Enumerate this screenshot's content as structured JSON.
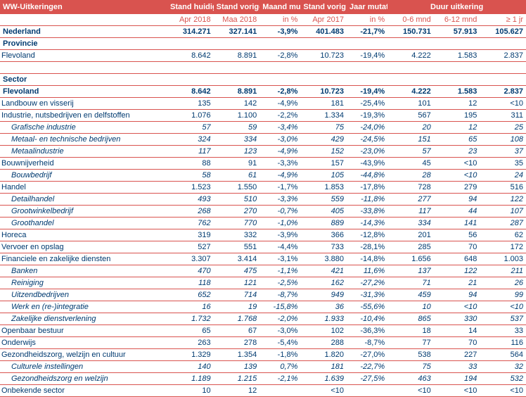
{
  "title": "WW-Uitkeringen",
  "headers": {
    "group": [
      "Stand huidige maand",
      "Stand vorige maand",
      "Maand mutatie",
      "Stand vorig jaar",
      "Jaar mutatie",
      "Duur uitkering"
    ],
    "sub": [
      "Apr 2018",
      "Maa 2018",
      "in %",
      "Apr 2017",
      "in %",
      "0-6 mnd",
      "6-12 mnd",
      "≥ 1 jr"
    ]
  },
  "rows": [
    {
      "style": "bold",
      "label": "Nederland",
      "v": [
        "314.271",
        "327.141",
        "-3,9%",
        "401.483",
        "-21,7%",
        "150.731",
        "57.913",
        "105.627"
      ]
    },
    {
      "style": "section",
      "label": "Provincie",
      "v": [
        "",
        "",
        "",
        "",
        "",
        "",
        "",
        ""
      ]
    },
    {
      "style": "cat",
      "label": "Flevoland",
      "v": [
        "8.642",
        "8.891",
        "-2,8%",
        "10.723",
        "-19,4%",
        "4.222",
        "1.583",
        "2.837"
      ]
    },
    {
      "style": "blank",
      "label": "",
      "v": [
        "",
        "",
        "",
        "",
        "",
        "",
        "",
        ""
      ]
    },
    {
      "style": "section",
      "label": "Sector",
      "v": [
        "",
        "",
        "",
        "",
        "",
        "",
        "",
        ""
      ]
    },
    {
      "style": "bold",
      "label": "Flevoland",
      "v": [
        "8.642",
        "8.891",
        "-2,8%",
        "10.723",
        "-19,4%",
        "4.222",
        "1.583",
        "2.837"
      ]
    },
    {
      "style": "cat",
      "label": "Landbouw en visserij",
      "v": [
        "135",
        "142",
        "-4,9%",
        "181",
        "-25,4%",
        "101",
        "12",
        "<10"
      ]
    },
    {
      "style": "cat",
      "label": "Industrie, nutsbedrijven en delfstoffen",
      "v": [
        "1.076",
        "1.100",
        "-2,2%",
        "1.334",
        "-19,3%",
        "567",
        "195",
        "311"
      ]
    },
    {
      "style": "italic",
      "label": "Grafische industrie",
      "v": [
        "57",
        "59",
        "-3,4%",
        "75",
        "-24,0%",
        "20",
        "12",
        "25"
      ]
    },
    {
      "style": "italic",
      "label": "Metaal- en technische bedrijven",
      "v": [
        "324",
        "334",
        "-3,0%",
        "429",
        "-24,5%",
        "151",
        "65",
        "108"
      ]
    },
    {
      "style": "italic",
      "label": "Metaalindustrie",
      "v": [
        "117",
        "123",
        "-4,9%",
        "152",
        "-23,0%",
        "57",
        "23",
        "37"
      ]
    },
    {
      "style": "cat",
      "label": "Bouwnijverheid",
      "v": [
        "88",
        "91",
        "-3,3%",
        "157",
        "-43,9%",
        "45",
        "<10",
        "35"
      ]
    },
    {
      "style": "italic",
      "label": "Bouwbedrijf",
      "v": [
        "58",
        "61",
        "-4,9%",
        "105",
        "-44,8%",
        "28",
        "<10",
        "24"
      ]
    },
    {
      "style": "cat",
      "label": "Handel",
      "v": [
        "1.523",
        "1.550",
        "-1,7%",
        "1.853",
        "-17,8%",
        "728",
        "279",
        "516"
      ]
    },
    {
      "style": "italic",
      "label": "Detailhandel",
      "v": [
        "493",
        "510",
        "-3,3%",
        "559",
        "-11,8%",
        "277",
        "94",
        "122"
      ]
    },
    {
      "style": "italic",
      "label": "Grootwinkelbedrijf",
      "v": [
        "268",
        "270",
        "-0,7%",
        "405",
        "-33,8%",
        "117",
        "44",
        "107"
      ]
    },
    {
      "style": "italic",
      "label": "Groothandel",
      "v": [
        "762",
        "770",
        "-1,0%",
        "889",
        "-14,3%",
        "334",
        "141",
        "287"
      ]
    },
    {
      "style": "cat",
      "label": "Horeca",
      "v": [
        "319",
        "332",
        "-3,9%",
        "366",
        "-12,8%",
        "201",
        "56",
        "62"
      ]
    },
    {
      "style": "cat",
      "label": "Vervoer en opslag",
      "v": [
        "527",
        "551",
        "-4,4%",
        "733",
        "-28,1%",
        "285",
        "70",
        "172"
      ]
    },
    {
      "style": "cat",
      "label": "Financiele en zakelijke diensten",
      "v": [
        "3.307",
        "3.414",
        "-3,1%",
        "3.880",
        "-14,8%",
        "1.656",
        "648",
        "1.003"
      ]
    },
    {
      "style": "italic",
      "label": "Banken",
      "v": [
        "470",
        "475",
        "-1,1%",
        "421",
        "11,6%",
        "137",
        "122",
        "211"
      ]
    },
    {
      "style": "italic",
      "label": "Reiniging",
      "v": [
        "118",
        "121",
        "-2,5%",
        "162",
        "-27,2%",
        "71",
        "21",
        "26"
      ]
    },
    {
      "style": "italic",
      "label": "Uitzendbedrijven",
      "v": [
        "652",
        "714",
        "-8,7%",
        "949",
        "-31,3%",
        "459",
        "94",
        "99"
      ]
    },
    {
      "style": "italic",
      "label": "Werk en (re-)integratie",
      "v": [
        "16",
        "19",
        "-15,8%",
        "36",
        "-55,6%",
        "10",
        "<10",
        "<10"
      ]
    },
    {
      "style": "italic",
      "label": "Zakelijke dienstverlening",
      "v": [
        "1.732",
        "1.768",
        "-2,0%",
        "1.933",
        "-10,4%",
        "865",
        "330",
        "537"
      ]
    },
    {
      "style": "cat",
      "label": "Openbaar bestuur",
      "v": [
        "65",
        "67",
        "-3,0%",
        "102",
        "-36,3%",
        "18",
        "14",
        "33"
      ]
    },
    {
      "style": "cat",
      "label": "Onderwijs",
      "v": [
        "263",
        "278",
        "-5,4%",
        "288",
        "-8,7%",
        "77",
        "70",
        "116"
      ]
    },
    {
      "style": "cat",
      "label": "Gezondheidszorg, welzijn en cultuur",
      "v": [
        "1.329",
        "1.354",
        "-1,8%",
        "1.820",
        "-27,0%",
        "538",
        "227",
        "564"
      ]
    },
    {
      "style": "italic",
      "label": "Culturele instellingen",
      "v": [
        "140",
        "139",
        "0,7%",
        "181",
        "-22,7%",
        "75",
        "33",
        "32"
      ]
    },
    {
      "style": "italic",
      "label": "Gezondheidszorg en welzijn",
      "v": [
        "1.189",
        "1.215",
        "-2,1%",
        "1.639",
        "-27,5%",
        "463",
        "194",
        "532"
      ]
    },
    {
      "style": "cat",
      "label": "Onbekende sector",
      "v": [
        "10",
        "12",
        "",
        "<10",
        "",
        "<10",
        "<10",
        "<10"
      ]
    }
  ],
  "colors": {
    "header_bg": "#d9534f",
    "header_fg": "#ffffff",
    "accent": "#d9534f",
    "text": "#003a70"
  }
}
